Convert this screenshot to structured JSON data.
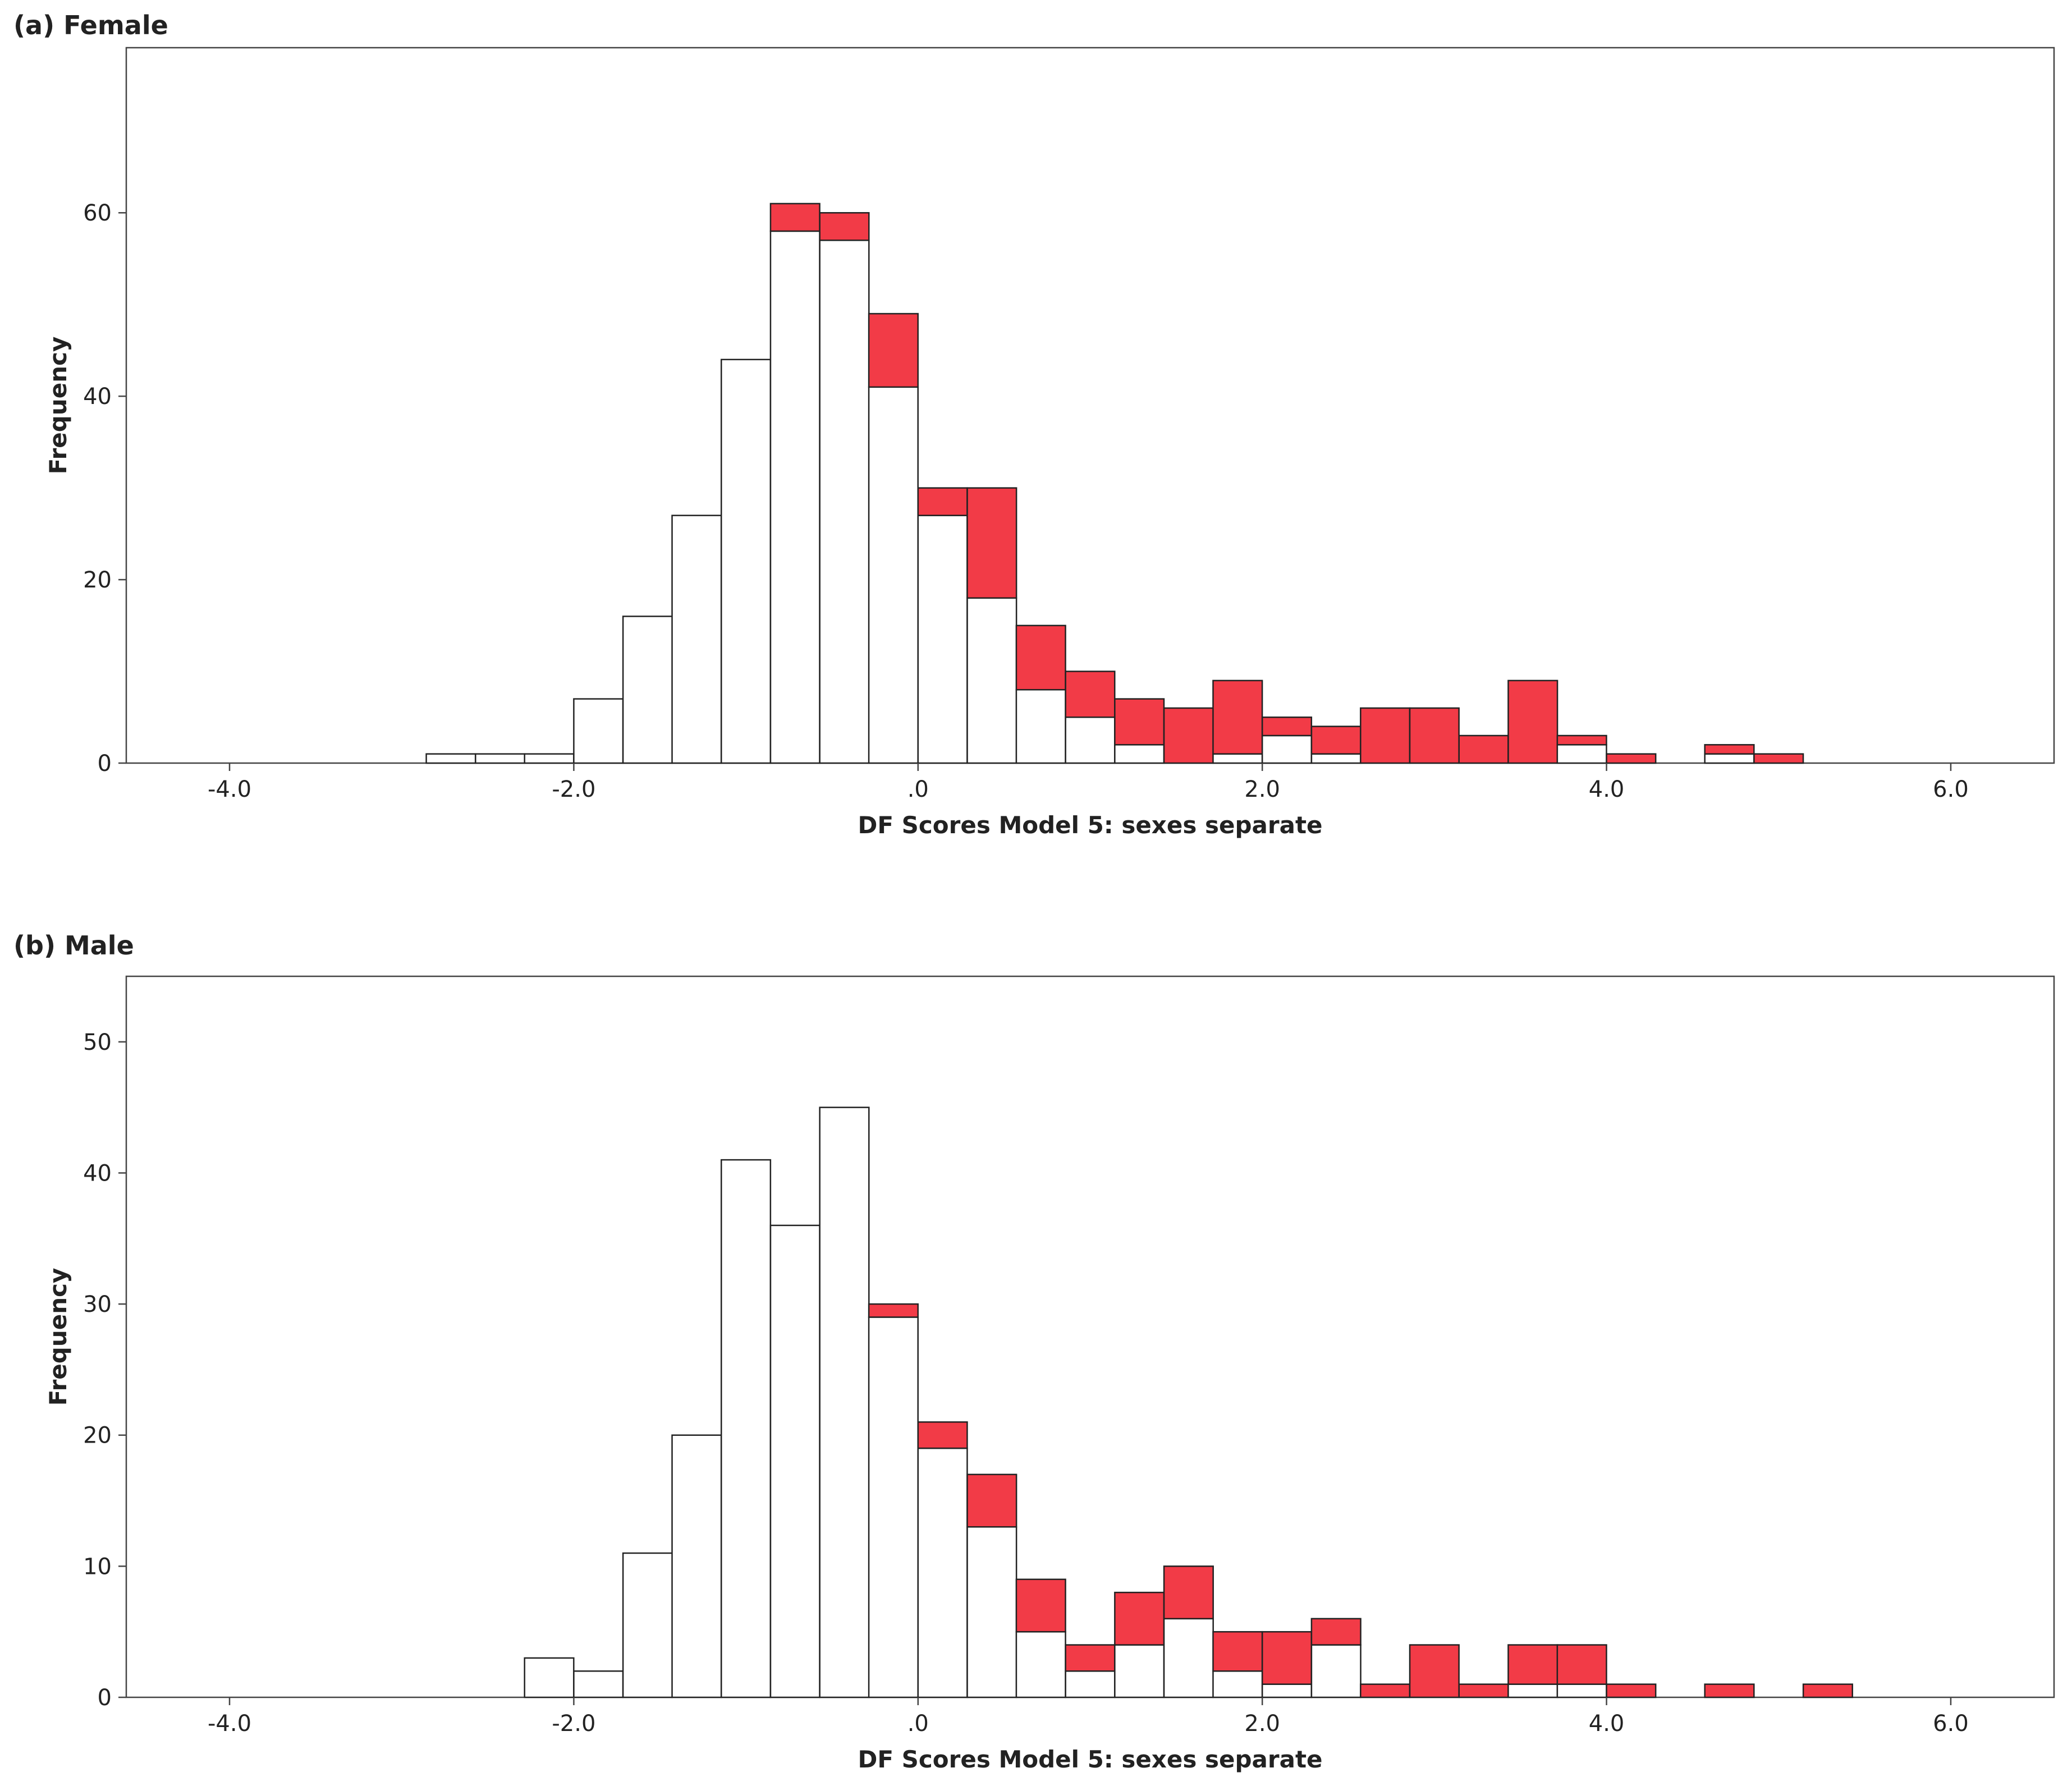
{
  "colors": {
    "highlight": "#f23b47",
    "base": "#ffffff",
    "frame": "#444444"
  },
  "chart_data": [
    {
      "panel": "a",
      "type": "bar",
      "title": "(a) Female",
      "xlabel": "DF Scores Model 5: sexes separate",
      "ylabel": "Frequency",
      "xlim": [
        -4.6,
        6.6
      ],
      "ylim": [
        0,
        78
      ],
      "xticks": [
        -4.0,
        -2.0,
        0.0,
        2.0,
        4.0,
        6.0
      ],
      "xtick_labels": [
        "-4.0",
        "-2.0",
        ".0",
        "2.0",
        "4.0",
        "6.0"
      ],
      "yticks": [
        0,
        20,
        40,
        60
      ],
      "ytick_labels": [
        "0",
        "20",
        "40",
        "60"
      ],
      "bin_width": 0.2857,
      "bin_starts": [
        -2.857,
        -2.571,
        -2.286,
        -2.0,
        -1.714,
        -1.429,
        -1.143,
        -0.857,
        -0.571,
        -0.286,
        0.0,
        0.286,
        0.571,
        0.857,
        1.143,
        1.429,
        1.714,
        2.0,
        2.286,
        2.571,
        2.857,
        3.143,
        3.429,
        3.714,
        4.0,
        4.286,
        4.571,
        4.857
      ],
      "series": [
        {
          "name": "base",
          "color": "#ffffff",
          "values": [
            1,
            1,
            1,
            7,
            16,
            27,
            44,
            58,
            57,
            41,
            27,
            18,
            8,
            5,
            2,
            0,
            1,
            3,
            1,
            0,
            0,
            0,
            0,
            2,
            0,
            0,
            1,
            0
          ]
        },
        {
          "name": "highlight",
          "color": "#f23b47",
          "values": [
            0,
            0,
            0,
            0,
            0,
            0,
            0,
            3,
            3,
            8,
            3,
            12,
            7,
            5,
            5,
            6,
            8,
            2,
            3,
            6,
            6,
            3,
            9,
            1,
            1,
            0,
            1,
            1
          ]
        }
      ]
    },
    {
      "panel": "b",
      "type": "bar",
      "title": "(b) Male",
      "xlabel": "DF Scores Model 5: sexes separate",
      "ylabel": "Frequency",
      "xlim": [
        -4.6,
        6.6
      ],
      "ylim": [
        0,
        55
      ],
      "xticks": [
        -4.0,
        -2.0,
        0.0,
        2.0,
        4.0,
        6.0
      ],
      "xtick_labels": [
        "-4.0",
        "-2.0",
        ".0",
        "2.0",
        "4.0",
        "6.0"
      ],
      "yticks": [
        0,
        10,
        20,
        30,
        40,
        50
      ],
      "ytick_labels": [
        "0",
        "10",
        "20",
        "30",
        "40",
        "50"
      ],
      "bin_width": 0.2857,
      "bin_starts": [
        -2.286,
        -2.0,
        -1.714,
        -1.429,
        -1.143,
        -0.857,
        -0.571,
        -0.286,
        0.0,
        0.286,
        0.571,
        0.857,
        1.143,
        1.429,
        1.714,
        2.0,
        2.286,
        2.571,
        2.857,
        3.143,
        3.429,
        3.714,
        4.0,
        4.286,
        4.571,
        4.857,
        5.143
      ],
      "series": [
        {
          "name": "base",
          "color": "#ffffff",
          "values": [
            3,
            2,
            11,
            20,
            41,
            36,
            45,
            29,
            19,
            13,
            5,
            2,
            4,
            6,
            2,
            1,
            4,
            0,
            0,
            0,
            1,
            1,
            0,
            0,
            0,
            0,
            0
          ]
        },
        {
          "name": "highlight",
          "color": "#f23b47",
          "values": [
            0,
            0,
            0,
            0,
            0,
            0,
            0,
            1,
            2,
            4,
            4,
            2,
            4,
            4,
            3,
            4,
            2,
            1,
            4,
            1,
            3,
            3,
            1,
            0,
            1,
            0,
            1
          ]
        }
      ]
    }
  ]
}
